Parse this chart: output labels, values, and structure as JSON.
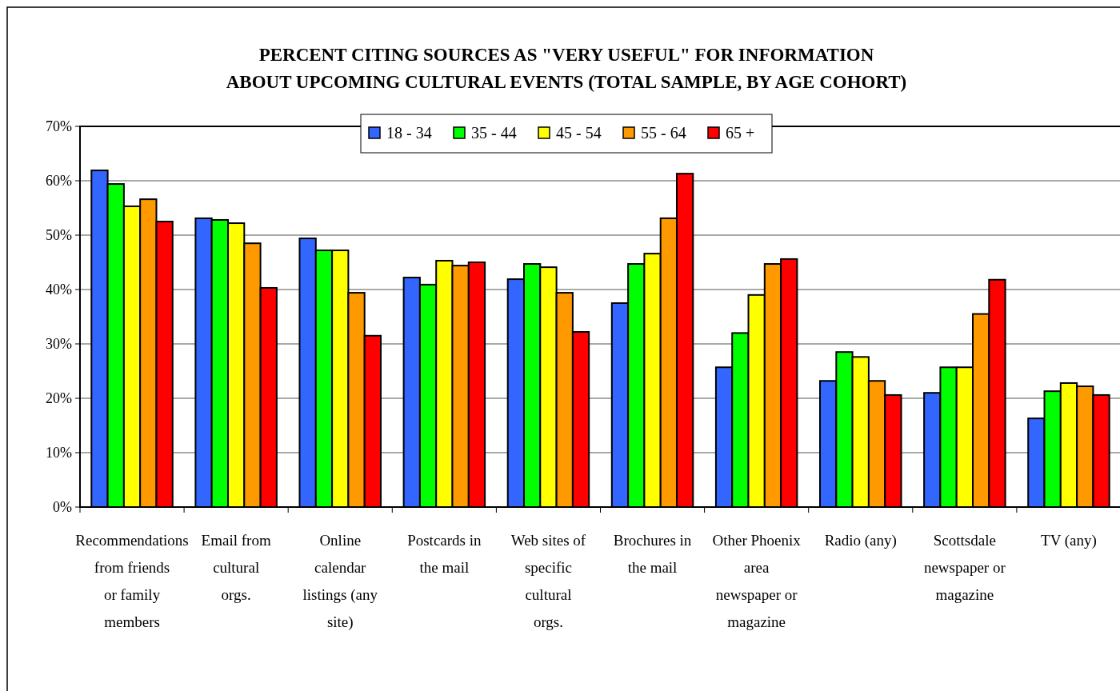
{
  "chart_data": {
    "type": "bar",
    "title": "PERCENT CITING SOURCES AS  \"VERY USEFUL\" FOR INFORMATION ABOUT UPCOMING CULTURAL EVENTS (TOTAL SAMPLE, BY AGE COHORT)",
    "categories": [
      "Recommendations from friends or family members",
      "Email from cultural orgs.",
      "Online calendar listings (any site)",
      "Postcards in the mail",
      "Web sites of specific cultural orgs.",
      "Brochures in the mail",
      "Other Phoenix area newspaper or magazine",
      "Radio (any)",
      "Scottsdale newspaper or magazine",
      "TV (any)"
    ],
    "series": [
      {
        "name": "18 - 34",
        "color": "#3366ff",
        "values": [
          61.9,
          53.1,
          49.4,
          42.2,
          41.9,
          37.5,
          25.7,
          23.2,
          21.0,
          16.3
        ]
      },
      {
        "name": "35 - 44",
        "color": "#00ff00",
        "values": [
          59.4,
          52.8,
          47.2,
          40.9,
          44.7,
          44.7,
          32.0,
          28.5,
          25.7,
          21.3
        ]
      },
      {
        "name": "45 - 54",
        "color": "#ffff00",
        "values": [
          55.3,
          52.2,
          47.2,
          45.3,
          44.1,
          46.6,
          39.0,
          27.6,
          25.7,
          22.8
        ]
      },
      {
        "name": "55 - 64",
        "color": "#ff9900",
        "values": [
          56.6,
          48.5,
          39.4,
          44.4,
          39.4,
          53.1,
          44.7,
          23.2,
          35.5,
          22.2
        ]
      },
      {
        "name": "65 +",
        "color": "#ff0000",
        "values": [
          52.5,
          40.3,
          31.5,
          45.0,
          32.2,
          61.3,
          45.6,
          20.6,
          41.8,
          20.6
        ]
      }
    ],
    "ylim": [
      0,
      70
    ],
    "yticks": [
      {
        "value": 0,
        "label": "0%"
      },
      {
        "value": 10,
        "label": "10%"
      },
      {
        "value": 20,
        "label": "20%"
      },
      {
        "value": 30,
        "label": "30%"
      },
      {
        "value": 40,
        "label": "40%"
      },
      {
        "value": 50,
        "label": "50%"
      },
      {
        "value": 60,
        "label": "60%"
      },
      {
        "value": 70,
        "label": "70%"
      }
    ],
    "grid": "y",
    "legend": "top"
  }
}
